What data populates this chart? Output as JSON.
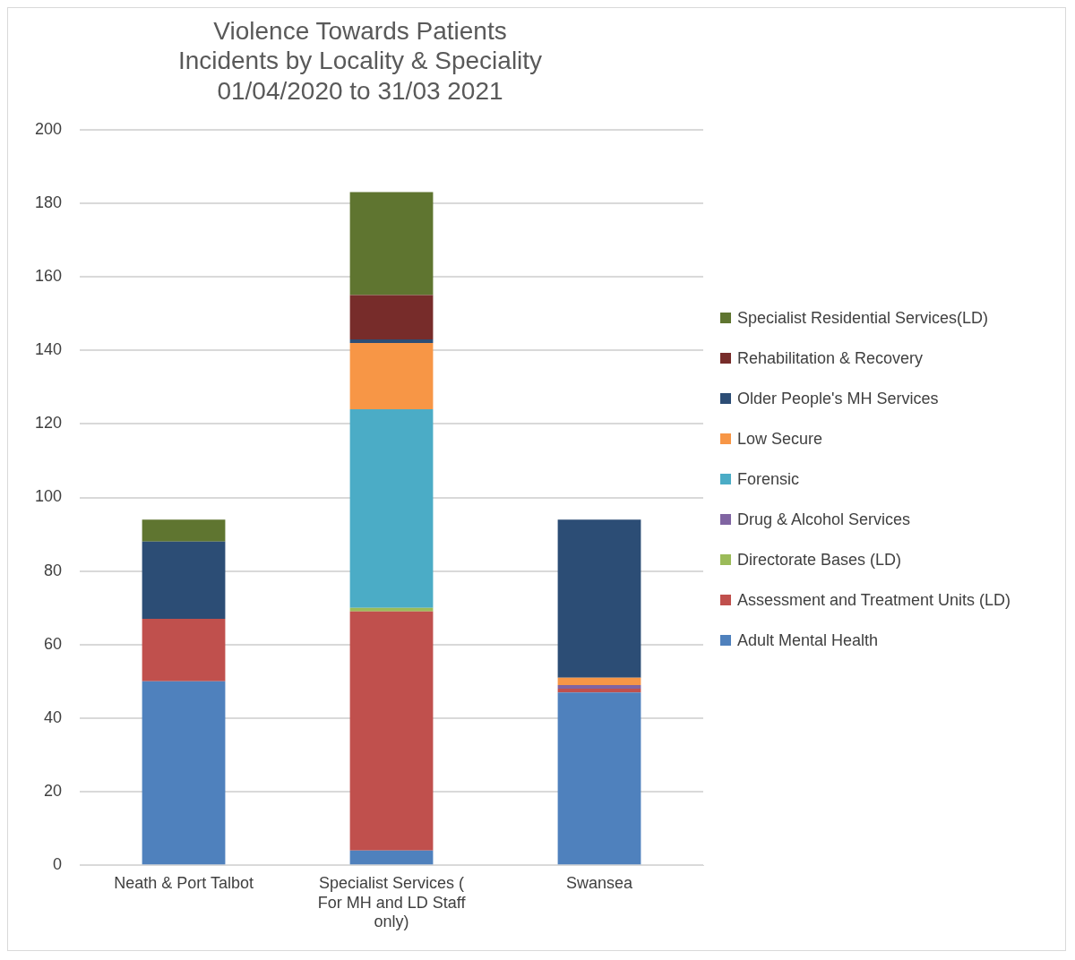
{
  "chart_data": {
    "type": "bar",
    "title": "Violence Towards Patients\nIncidents by Locality & Speciality\n01/04/2020 to 31/03 2021",
    "categories": [
      "Neath & Port Talbot",
      "Specialist Services ( For MH and LD Staff only)",
      "Swansea"
    ],
    "stacked": true,
    "ylim": [
      0,
      200
    ],
    "yticks": [
      0,
      20,
      40,
      60,
      80,
      100,
      120,
      140,
      160,
      180,
      200
    ],
    "grid": "y",
    "legend": "right",
    "series": [
      {
        "name": "Adult Mental Health",
        "color": "#4f81bd",
        "values": [
          50,
          4,
          47
        ]
      },
      {
        "name": "Assessment and Treatment Units (LD)",
        "color": "#c0504d",
        "values": [
          17,
          65,
          1
        ]
      },
      {
        "name": "Directorate Bases (LD)",
        "color": "#9bbb59",
        "values": [
          null,
          1,
          null
        ]
      },
      {
        "name": "Drug & Alcohol Services",
        "color": "#8064a2",
        "values": [
          null,
          null,
          1
        ]
      },
      {
        "name": "Forensic",
        "color": "#4bacc6",
        "values": [
          null,
          54,
          null
        ]
      },
      {
        "name": "Low Secure",
        "color": "#f79646",
        "values": [
          null,
          18,
          2
        ]
      },
      {
        "name": "Older People's MH Services",
        "color": "#2c4d75",
        "values": [
          21,
          1,
          43
        ]
      },
      {
        "name": "Rehabilitation & Recovery",
        "color": "#772c2a",
        "values": [
          null,
          12,
          null
        ]
      },
      {
        "name": "Specialist Residential Services(LD)",
        "color": "#5f7530",
        "values": [
          6,
          28,
          null
        ]
      }
    ]
  }
}
